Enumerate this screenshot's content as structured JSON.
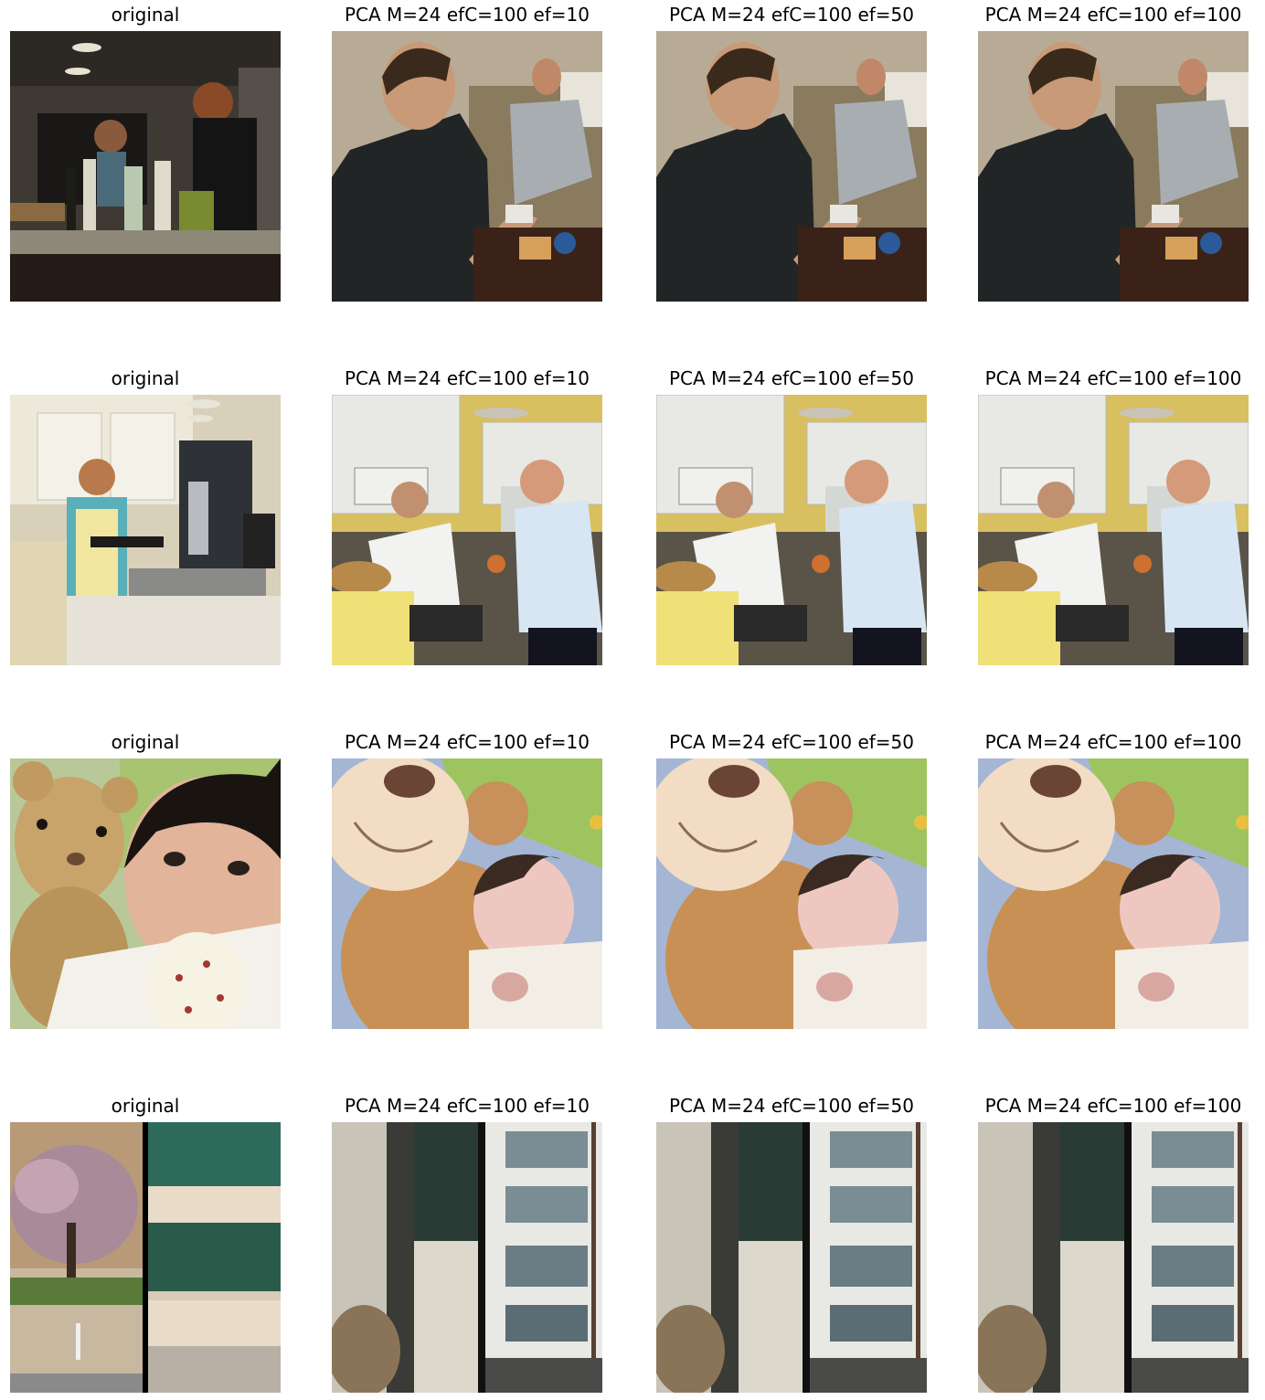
{
  "rows": [
    {
      "titles": [
        "original",
        "PCA M=24 efC=100 ef=10",
        "PCA M=24 efC=100 ef=50",
        "PCA M=24 efC=100 ef=100"
      ],
      "scenes": [
        "kitchen-counter",
        "office-men",
        "office-men",
        "office-men"
      ]
    },
    {
      "titles": [
        "original",
        "PCA M=24 efC=100 ef=10",
        "PCA M=24 efC=100 ef=50",
        "PCA M=24 efC=100 ef=100"
      ],
      "scenes": [
        "kitchen-woman",
        "kitchen-couple",
        "kitchen-couple",
        "kitchen-couple"
      ]
    },
    {
      "titles": [
        "original",
        "PCA M=24 efC=100 ef=10",
        "PCA M=24 efC=100 ef=50",
        "PCA M=24 efC=100 ef=100"
      ],
      "scenes": [
        "baby-bear",
        "bear-newborn",
        "bear-newborn",
        "bear-newborn"
      ]
    },
    {
      "titles": [
        "original",
        "PCA M=24 efC=100 ef=10",
        "PCA M=24 efC=100 ef=50",
        "PCA M=24 efC=100 ef=100"
      ],
      "scenes": [
        "tree-building",
        "wall-building",
        "wall-building",
        "wall-building"
      ]
    }
  ]
}
